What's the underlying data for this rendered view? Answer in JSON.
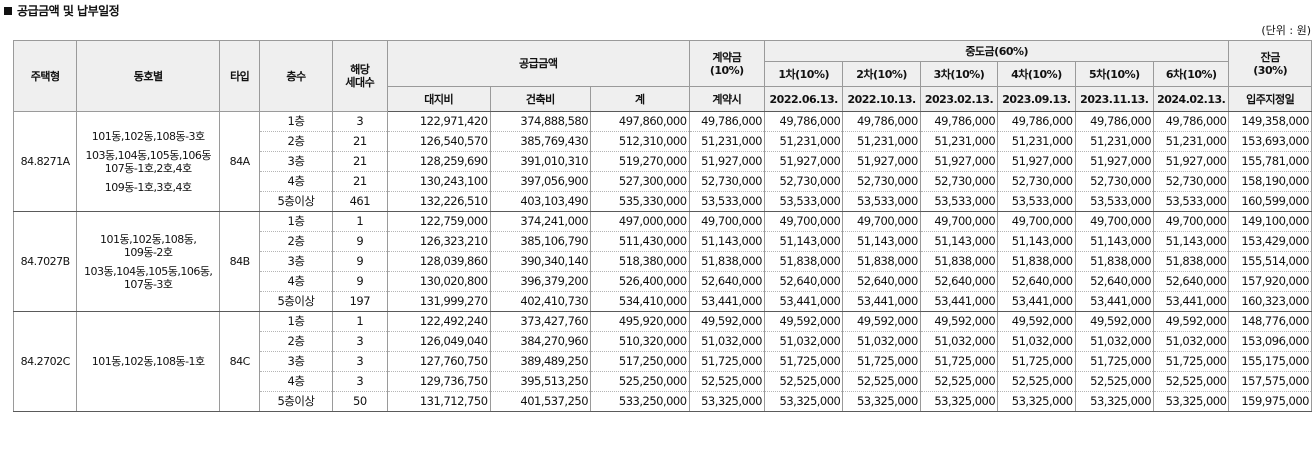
{
  "title": "공급금액 및 납부일정",
  "unit_note": "(단위 : 원)",
  "headers": {
    "type": "주택형",
    "dong_ho": "동호별",
    "taip": "타입",
    "floor": "층수",
    "households_l1": "해당",
    "households_l2": "세대수",
    "supply": "공급금액",
    "land": "대지비",
    "building": "건축비",
    "total": "계",
    "contract_l1": "계약금",
    "contract_l2": "(10%)",
    "contract_when": "계약시",
    "middle": "중도금(60%)",
    "middle_cols": [
      {
        "label": "1차(10%)",
        "date": "2022.06.13."
      },
      {
        "label": "2차(10%)",
        "date": "2022.10.13."
      },
      {
        "label": "3차(10%)",
        "date": "2023.02.13."
      },
      {
        "label": "4차(10%)",
        "date": "2023.09.13."
      },
      {
        "label": "5차(10%)",
        "date": "2023.11.13."
      },
      {
        "label": "6차(10%)",
        "date": "2024.02.13."
      }
    ],
    "balance_l1": "잔금",
    "balance_l2": "(30%)",
    "balance_when": "입주지정일"
  },
  "groups": [
    {
      "area": "84.8271A",
      "dong_lines": [
        "101동,102동,108동-3호",
        "103동,104동,105동,106동\n107동-1호,2호,4호",
        "109동-1호,3호,4호"
      ],
      "taip": "84A",
      "rows": [
        {
          "floor": "1층",
          "units": "3",
          "land": "122,971,420",
          "building": "374,888,580",
          "total": "497,860,000",
          "contract": "49,786,000",
          "m": "49,786,000",
          "balance": "149,358,000"
        },
        {
          "floor": "2층",
          "units": "21",
          "land": "126,540,570",
          "building": "385,769,430",
          "total": "512,310,000",
          "contract": "51,231,000",
          "m": "51,231,000",
          "balance": "153,693,000"
        },
        {
          "floor": "3층",
          "units": "21",
          "land": "128,259,690",
          "building": "391,010,310",
          "total": "519,270,000",
          "contract": "51,927,000",
          "m": "51,927,000",
          "balance": "155,781,000"
        },
        {
          "floor": "4층",
          "units": "21",
          "land": "130,243,100",
          "building": "397,056,900",
          "total": "527,300,000",
          "contract": "52,730,000",
          "m": "52,730,000",
          "balance": "158,190,000"
        },
        {
          "floor": "5층이상",
          "units": "461",
          "land": "132,226,510",
          "building": "403,103,490",
          "total": "535,330,000",
          "contract": "53,533,000",
          "m": "53,533,000",
          "balance": "160,599,000"
        }
      ]
    },
    {
      "area": "84.7027B",
      "dong_lines": [
        "101동,102동,108동,\n109동-2호",
        "103동,104동,105동,106동,\n107동-3호"
      ],
      "taip": "84B",
      "rows": [
        {
          "floor": "1층",
          "units": "1",
          "land": "122,759,000",
          "building": "374,241,000",
          "total": "497,000,000",
          "contract": "49,700,000",
          "m": "49,700,000",
          "balance": "149,100,000"
        },
        {
          "floor": "2층",
          "units": "9",
          "land": "126,323,210",
          "building": "385,106,790",
          "total": "511,430,000",
          "contract": "51,143,000",
          "m": "51,143,000",
          "balance": "153,429,000"
        },
        {
          "floor": "3층",
          "units": "9",
          "land": "128,039,860",
          "building": "390,340,140",
          "total": "518,380,000",
          "contract": "51,838,000",
          "m": "51,838,000",
          "balance": "155,514,000"
        },
        {
          "floor": "4층",
          "units": "9",
          "land": "130,020,800",
          "building": "396,379,200",
          "total": "526,400,000",
          "contract": "52,640,000",
          "m": "52,640,000",
          "balance": "157,920,000"
        },
        {
          "floor": "5층이상",
          "units": "197",
          "land": "131,999,270",
          "building": "402,410,730",
          "total": "534,410,000",
          "contract": "53,441,000",
          "m": "53,441,000",
          "balance": "160,323,000"
        }
      ]
    },
    {
      "area": "84.2702C",
      "dong_lines": [
        "101동,102동,108동-1호"
      ],
      "taip": "84C",
      "rows": [
        {
          "floor": "1층",
          "units": "1",
          "land": "122,492,240",
          "building": "373,427,760",
          "total": "495,920,000",
          "contract": "49,592,000",
          "m": "49,592,000",
          "balance": "148,776,000"
        },
        {
          "floor": "2층",
          "units": "3",
          "land": "126,049,040",
          "building": "384,270,960",
          "total": "510,320,000",
          "contract": "51,032,000",
          "m": "51,032,000",
          "balance": "153,096,000"
        },
        {
          "floor": "3층",
          "units": "3",
          "land": "127,760,750",
          "building": "389,489,250",
          "total": "517,250,000",
          "contract": "51,725,000",
          "m": "51,725,000",
          "balance": "155,175,000"
        },
        {
          "floor": "4층",
          "units": "3",
          "land": "129,736,750",
          "building": "395,513,250",
          "total": "525,250,000",
          "contract": "52,525,000",
          "m": "52,525,000",
          "balance": "157,575,000"
        },
        {
          "floor": "5층이상",
          "units": "50",
          "land": "131,712,750",
          "building": "401,537,250",
          "total": "533,250,000",
          "contract": "53,325,000",
          "m": "53,325,000",
          "balance": "159,975,000"
        }
      ]
    }
  ]
}
